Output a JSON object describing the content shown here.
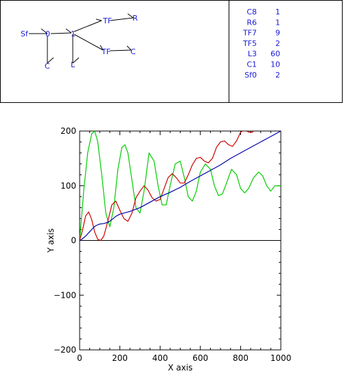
{
  "bond_graph": {
    "nodes": [
      {
        "id": "sf",
        "label": "Sf"
      },
      {
        "id": "j0",
        "label": "0"
      },
      {
        "id": "j1",
        "label": "1"
      },
      {
        "id": "tf_top",
        "label": "TF"
      },
      {
        "id": "r",
        "label": "R"
      },
      {
        "id": "tf_bottom",
        "label": "TF"
      },
      {
        "id": "c_right",
        "label": "C"
      },
      {
        "id": "c_left",
        "label": "C"
      },
      {
        "id": "l",
        "label": "L"
      }
    ]
  },
  "parameters": [
    {
      "name": "C8",
      "value": "1"
    },
    {
      "name": "R6",
      "value": "1"
    },
    {
      "name": "TF7",
      "value": "9"
    },
    {
      "name": "TF5",
      "value": "2"
    },
    {
      "name": "L3",
      "value": "60"
    },
    {
      "name": "C1",
      "value": "10"
    },
    {
      "name": "Sf0",
      "value": "2"
    }
  ],
  "chart_data": {
    "type": "line",
    "xlabel": "X axis",
    "ylabel": "Y axis",
    "xlim": [
      0,
      1000
    ],
    "ylim": [
      -200,
      200
    ],
    "x_ticks": [
      0,
      200,
      400,
      600,
      800,
      1000
    ],
    "y_ticks": [
      -200,
      -100,
      0,
      100,
      200
    ],
    "x_tick_labels": [
      "0",
      "200",
      "400",
      "600",
      "800",
      "1000"
    ],
    "y_tick_labels": [
      "−200",
      "−100",
      "0",
      "100",
      "200"
    ],
    "series": [
      {
        "color": "#00cc00",
        "x": [
          0,
          20,
          40,
          60,
          75,
          90,
          110,
          130,
          150,
          170,
          190,
          210,
          225,
          240,
          260,
          280,
          300,
          320,
          345,
          370,
          390,
          410,
          430,
          450,
          475,
          500,
          520,
          540,
          560,
          580,
          600,
          625,
          650,
          670,
          690,
          710,
          730,
          755,
          780,
          800,
          820,
          840,
          865,
          890,
          910,
          930,
          950,
          970,
          1000
        ],
        "y": [
          0,
          90,
          160,
          195,
          200,
          180,
          120,
          50,
          25,
          60,
          130,
          170,
          175,
          160,
          110,
          60,
          50,
          90,
          160,
          145,
          100,
          65,
          65,
          100,
          140,
          145,
          115,
          80,
          72,
          90,
          125,
          140,
          130,
          100,
          82,
          85,
          105,
          130,
          120,
          95,
          87,
          95,
          115,
          125,
          118,
          100,
          90,
          100,
          100
        ]
      },
      {
        "color": "#cc0000",
        "x": [
          0,
          15,
          30,
          45,
          60,
          75,
          90,
          105,
          120,
          140,
          160,
          180,
          200,
          220,
          240,
          260,
          280,
          300,
          320,
          340,
          360,
          380,
          400,
          420,
          440,
          460,
          480,
          500,
          520,
          540,
          560,
          580,
          600,
          620,
          640,
          660,
          680,
          700,
          720,
          740,
          760,
          780,
          800,
          820,
          840,
          860,
          880,
          900
        ],
        "y": [
          0,
          20,
          45,
          52,
          38,
          15,
          2,
          0,
          8,
          35,
          65,
          72,
          55,
          40,
          35,
          50,
          78,
          90,
          100,
          92,
          78,
          72,
          75,
          95,
          115,
          122,
          115,
          105,
          105,
          120,
          138,
          150,
          152,
          145,
          142,
          150,
          170,
          180,
          182,
          175,
          172,
          182,
          198,
          202,
          198,
          198,
          210,
          215
        ]
      },
      {
        "color": "#0000aa",
        "x": [
          0,
          10,
          20,
          30,
          40,
          50,
          60,
          70,
          80,
          100,
          120,
          140,
          160,
          180,
          200,
          250,
          300,
          350,
          400,
          450,
          500,
          550,
          600,
          650,
          700,
          750,
          800,
          850,
          900,
          950,
          1000
        ],
        "y": [
          0,
          2,
          5,
          8,
          12,
          16,
          20,
          24,
          27,
          30,
          31,
          33,
          38,
          44,
          48,
          53,
          60,
          70,
          80,
          88,
          97,
          108,
          118,
          128,
          138,
          150,
          160,
          170,
          180,
          190,
          200
        ]
      }
    ]
  }
}
